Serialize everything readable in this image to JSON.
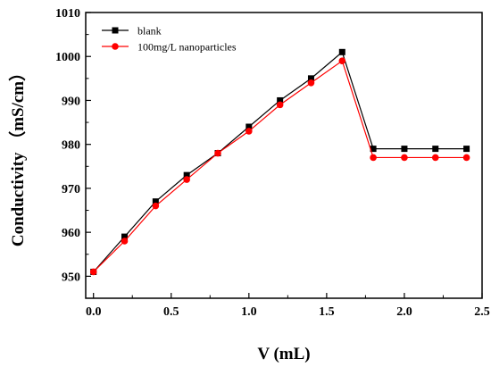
{
  "chart_data": {
    "type": "line",
    "title": "",
    "xlabel": "V (mL)",
    "ylabel": "Conductivity （mS/cm）",
    "xlim": [
      -0.05,
      2.5
    ],
    "ylim": [
      945,
      1010
    ],
    "xticks": [
      0.0,
      0.5,
      1.0,
      1.5,
      2.0,
      2.5
    ],
    "xtick_labels": [
      "0.0",
      "0.5",
      "1.0",
      "1.5",
      "2.0",
      "2.5"
    ],
    "yticks": [
      950,
      960,
      970,
      980,
      990,
      1000,
      1010
    ],
    "ytick_labels": [
      "950",
      "960",
      "970",
      "980",
      "990",
      "1000",
      "1010"
    ],
    "grid": false,
    "legend_position": "top-left",
    "x": [
      0.0,
      0.2,
      0.4,
      0.6,
      0.8,
      1.0,
      1.2,
      1.4,
      1.6,
      1.8,
      2.0,
      2.2,
      2.4
    ],
    "series": [
      {
        "name": "blank",
        "marker": "square",
        "color": "#000000",
        "values": [
          951,
          959,
          967,
          973,
          978,
          984,
          990,
          995,
          1001,
          979,
          979,
          979,
          979
        ]
      },
      {
        "name": "100mg/L nanoparticles",
        "marker": "circle",
        "color": "#ff0000",
        "values": [
          951,
          958,
          966,
          972,
          978,
          983,
          989,
          994,
          999,
          977,
          977,
          977,
          977
        ]
      }
    ]
  }
}
